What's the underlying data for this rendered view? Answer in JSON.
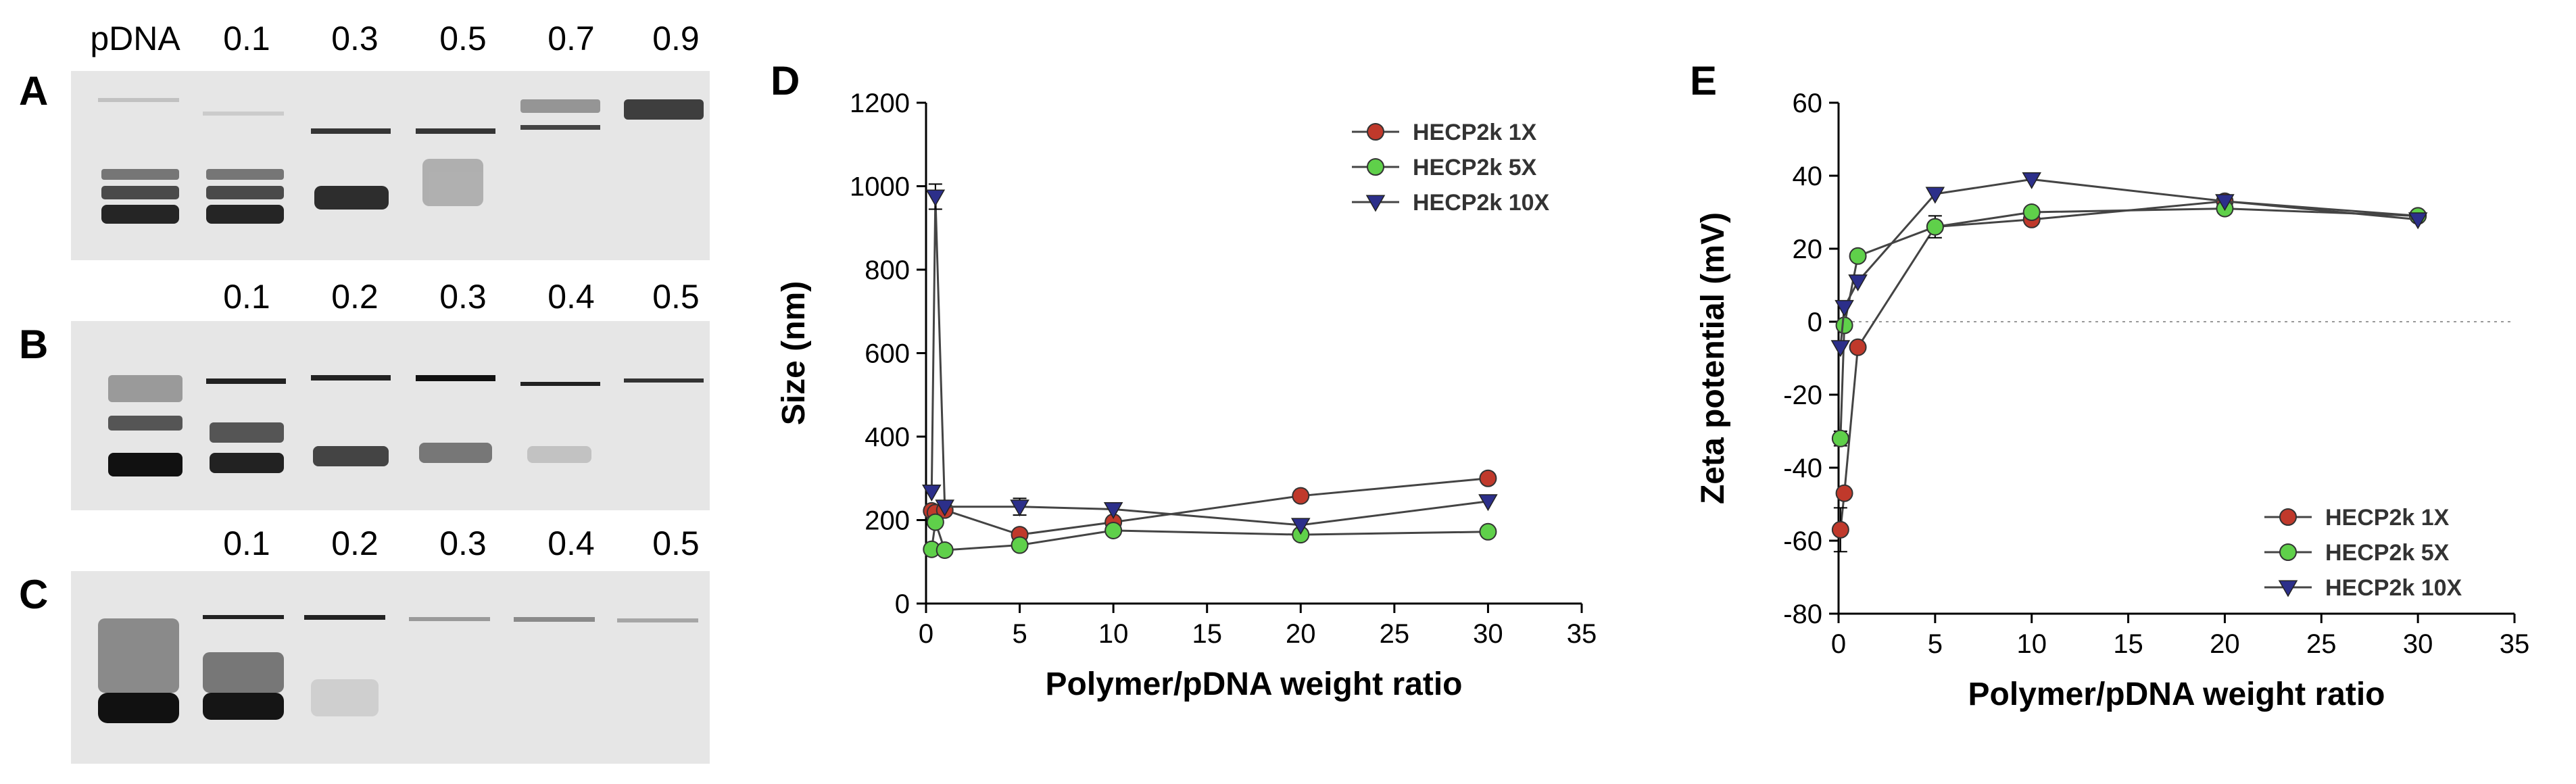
{
  "panels": {
    "A": "A",
    "B": "B",
    "C": "C",
    "D": "D",
    "E": "E"
  },
  "gel_A": {
    "lanes": [
      "pDNA",
      "0.1",
      "0.3",
      "0.5",
      "0.7",
      "0.9"
    ]
  },
  "gel_B": {
    "lanes": [
      "0.1",
      "0.2",
      "0.3",
      "0.4",
      "0.5"
    ]
  },
  "gel_C": {
    "lanes": [
      "0.1",
      "0.2",
      "0.3",
      "0.4",
      "0.5"
    ]
  },
  "colors": {
    "red": "#c0392b",
    "green": "#5fd04a",
    "blue": "#2c2f8a",
    "gel_bg": "#e6e6e6",
    "band": "#151515"
  },
  "chart_data": [
    {
      "type": "line",
      "title": "",
      "xlabel": "Polymer/pDNA weight ratio",
      "ylabel": "Size (nm)",
      "xlim": [
        0,
        35
      ],
      "ylim": [
        0,
        1200
      ],
      "xticks": [
        0,
        5,
        10,
        15,
        20,
        25,
        30,
        35
      ],
      "yticks": [
        0,
        200,
        400,
        600,
        800,
        1000,
        1200
      ],
      "legend_position": "top-right",
      "series": [
        {
          "name": "HECP2k 1X",
          "color": "#c0392b",
          "marker": "circle",
          "x": [
            0.3,
            0.5,
            1,
            5,
            10,
            20,
            30
          ],
          "y": [
            222,
            218,
            224,
            165,
            195,
            258,
            300
          ],
          "err": [
            0,
            0,
            0,
            0,
            0,
            0,
            0
          ]
        },
        {
          "name": "HECP2k 5X",
          "color": "#5fd04a",
          "marker": "circle",
          "x": [
            0.3,
            0.5,
            1,
            5,
            10,
            20,
            30
          ],
          "y": [
            130,
            195,
            128,
            140,
            175,
            165,
            172
          ],
          "err": [
            0,
            0,
            0,
            0,
            0,
            0,
            0
          ]
        },
        {
          "name": "HECP2k 10X",
          "color": "#2c2f8a",
          "marker": "triangle-down",
          "x": [
            0.3,
            0.5,
            1,
            5,
            10,
            20,
            30
          ],
          "y": [
            268,
            975,
            232,
            232,
            226,
            188,
            245
          ],
          "err": [
            0,
            30,
            0,
            20,
            0,
            0,
            0
          ]
        }
      ]
    },
    {
      "type": "line",
      "title": "",
      "xlabel": "Polymer/pDNA weight ratio",
      "ylabel": "Zeta potential (mV)",
      "xlim": [
        0,
        35
      ],
      "ylim": [
        -80,
        60
      ],
      "xticks": [
        0,
        5,
        10,
        15,
        20,
        25,
        30,
        35
      ],
      "yticks": [
        -80,
        -60,
        -40,
        -20,
        0,
        20,
        40,
        60
      ],
      "zero_line": "dotted",
      "legend_position": "bottom-right",
      "series": [
        {
          "name": "HECP2k 1X",
          "color": "#c0392b",
          "marker": "circle",
          "x": [
            0.1,
            0.3,
            1,
            5,
            10,
            20,
            30
          ],
          "y": [
            -57,
            -47,
            -7,
            26,
            28,
            33,
            29
          ],
          "err": [
            6,
            0,
            0,
            0,
            0,
            0,
            0
          ]
        },
        {
          "name": "HECP2k 5X",
          "color": "#5fd04a",
          "marker": "circle",
          "x": [
            0.1,
            0.3,
            1,
            5,
            10,
            20,
            30
          ],
          "y": [
            -32,
            -1,
            18,
            26,
            30,
            31,
            29
          ],
          "err": [
            2,
            0,
            0,
            3,
            0,
            0,
            0
          ]
        },
        {
          "name": "HECP2k 10X",
          "color": "#2c2f8a",
          "marker": "triangle-down",
          "x": [
            0.1,
            0.3,
            1,
            5,
            10,
            20,
            30
          ],
          "y": [
            -7,
            4,
            11,
            35,
            39,
            33,
            28
          ],
          "err": [
            0,
            0,
            0,
            0,
            0,
            0,
            0
          ]
        }
      ]
    }
  ]
}
